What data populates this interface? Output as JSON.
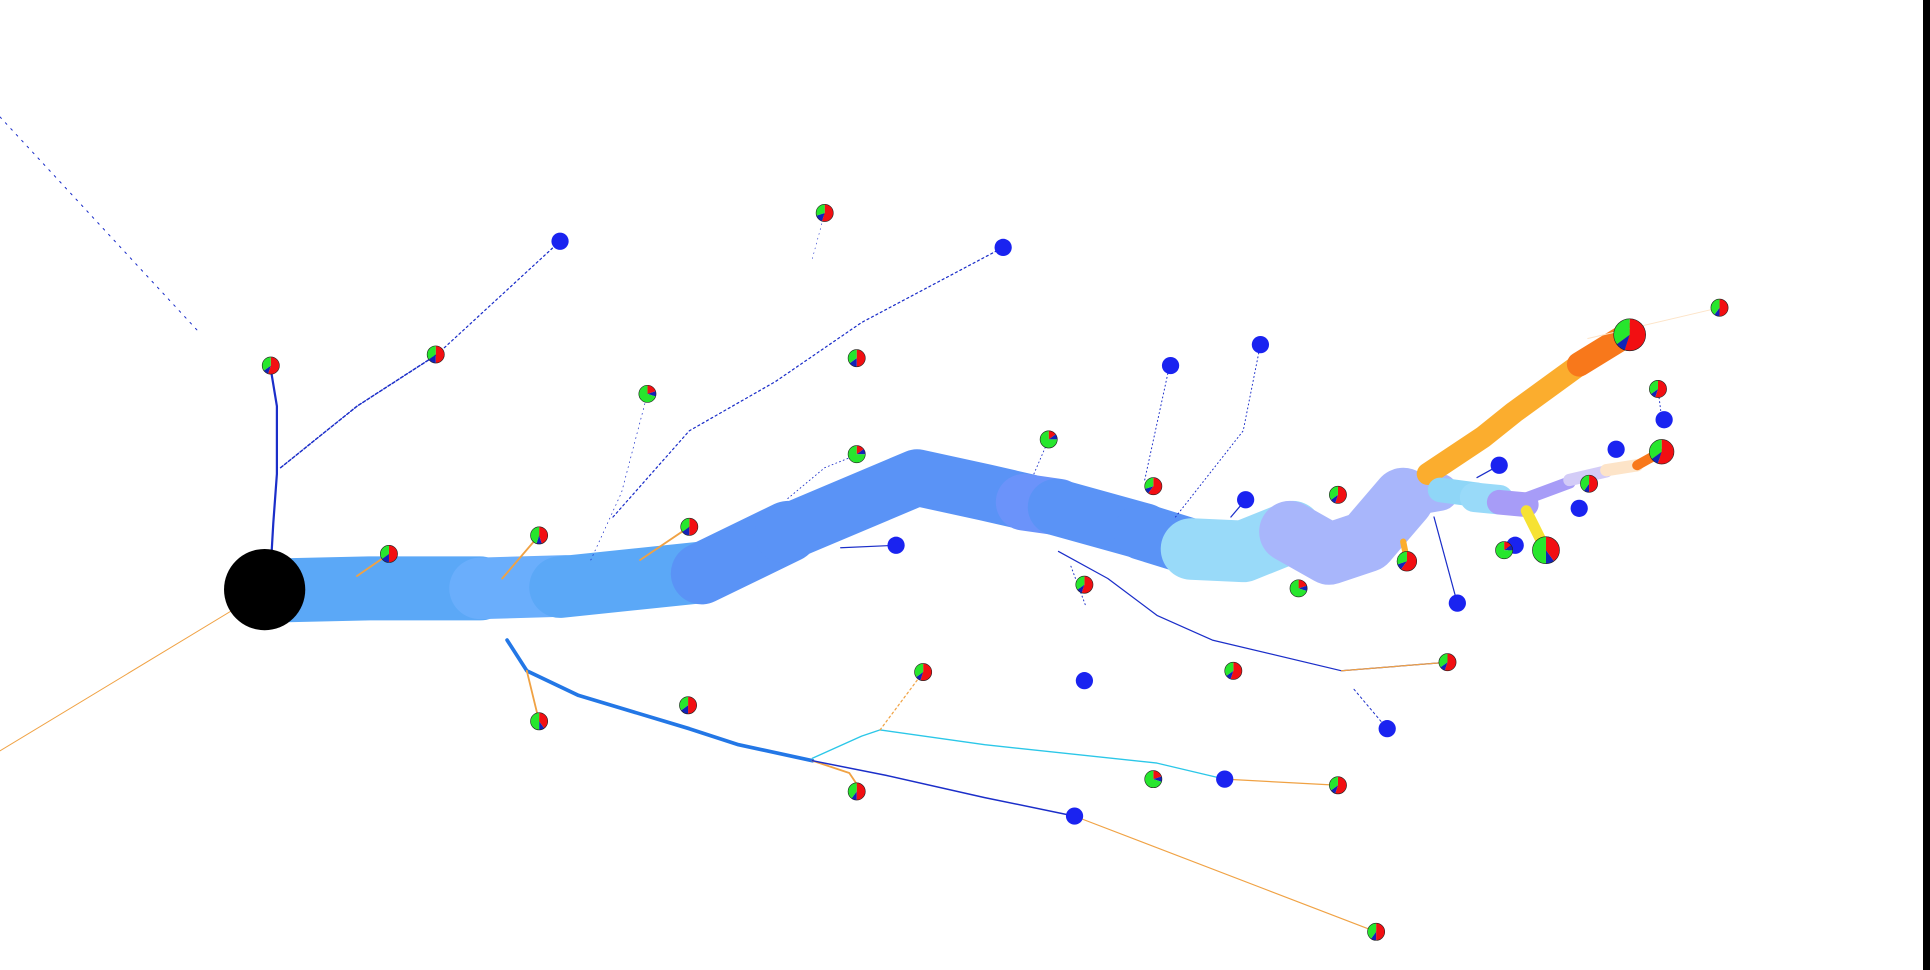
{
  "colors": {
    "background": "#ffffff",
    "root_node": "#000000",
    "edge_palette": {
      "trunk_blue": "#5ba8f7",
      "trunk_blue_2": "#6aaefc",
      "trunk_deep": "#5a93f6",
      "trunk_periwinkle": "#6b93fa",
      "trunk_light": "#99daf9",
      "trunk_lavender": "#a8b6fb",
      "orange": "#fbad2e",
      "orange_dark": "#f8781b",
      "yellow": "#f6e233",
      "purple": "#a79cf7",
      "pale_lavender": "#d3ccf7",
      "peach": "#fde4c8",
      "sky": "#8fd6f7",
      "navy": "#1b2ec9",
      "cyan": "#2bc7e8",
      "bright_blue": "#2377e6",
      "thin_orange": "#f0a244"
    },
    "node_palette": {
      "blue": "#1a23f0",
      "red": "#f20f12",
      "green": "#27e62d",
      "navy": "#1223b8"
    }
  },
  "icons": {
    "root": "root-node-circle",
    "leaf_blue": "blue-node-circle",
    "leaf_pie": "red-green-blue-pie-node"
  },
  "legend": [],
  "labels": []
}
